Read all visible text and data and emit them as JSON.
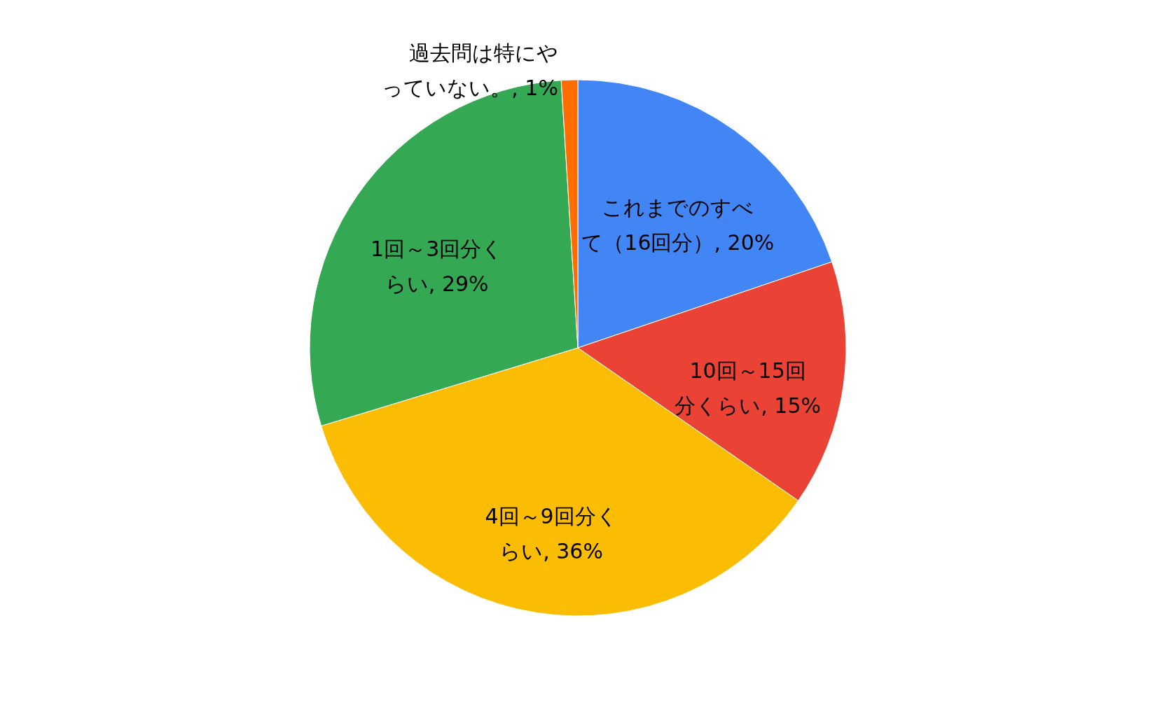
{
  "chart_data": {
    "type": "pie",
    "categories": [
      "これまでのすべて（16回分）",
      "10回～15回分くらい",
      "4回～9回分くらい",
      "1回～3回分くらい",
      "過去問は特にやっていない。"
    ],
    "value_labels": [
      "20%",
      "15%",
      "36%",
      "29%",
      "1%"
    ],
    "values": [
      20,
      15,
      36,
      29,
      1
    ],
    "colors": [
      "#4285f4",
      "#ea4335",
      "#fbbc04",
      "#34a853",
      "#ff6d01"
    ]
  }
}
